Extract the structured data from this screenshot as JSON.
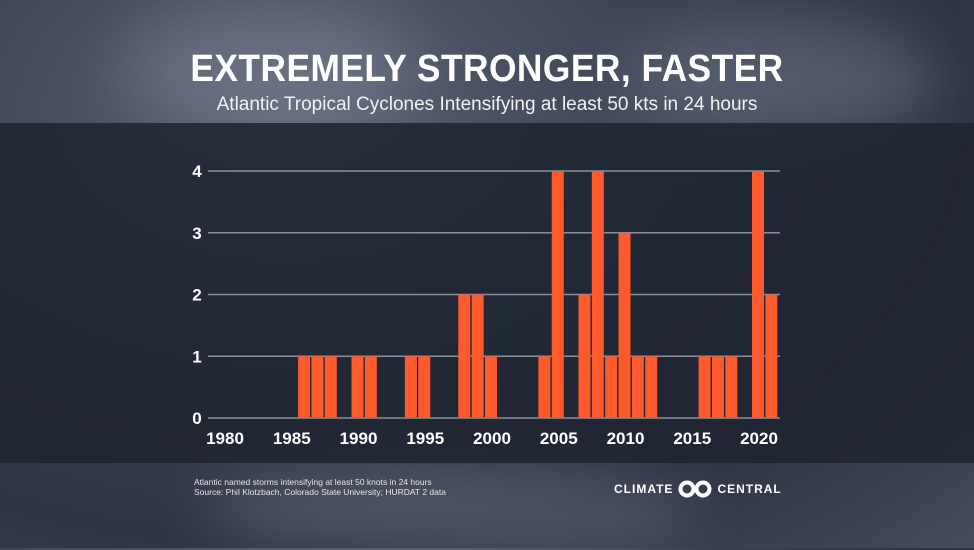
{
  "header": {
    "title": "EXTREMELY STRONGER, FASTER",
    "subtitle": "Atlantic Tropical Cyclones Intensifying at least 50 kts in 24 hours"
  },
  "footer": {
    "note_line1": "Atlantic named storms intensifying at least 50 knots in 24 hours",
    "note_line2": "Source: Phil Klotzbach, Colorado State University; HURDAT 2 data",
    "logo_left": "CLIMATE",
    "logo_right": "CENTRAL"
  },
  "chart_data": {
    "type": "bar",
    "title": "",
    "xlabel": "",
    "ylabel": "",
    "xlim": [
      1980,
      2021
    ],
    "ylim": [
      0,
      4
    ],
    "grid": true,
    "bar_color": "#ff5a2c",
    "x_ticks": [
      "1980",
      "1985",
      "1990",
      "1995",
      "2000",
      "2005",
      "2010",
      "2015",
      "2020"
    ],
    "y_ticks": [
      "0",
      "1",
      "2",
      "3",
      "4"
    ],
    "years": [
      1986,
      1987,
      1988,
      1990,
      1991,
      1994,
      1995,
      1998,
      1999,
      2000,
      2004,
      2005,
      2007,
      2008,
      2009,
      2010,
      2011,
      2012,
      2016,
      2017,
      2018,
      2020,
      2021
    ],
    "values": [
      1,
      1,
      1,
      1,
      1,
      1,
      1,
      2,
      2,
      1,
      1,
      4,
      2,
      4,
      1,
      3,
      1,
      1,
      1,
      1,
      1,
      4,
      2
    ]
  }
}
